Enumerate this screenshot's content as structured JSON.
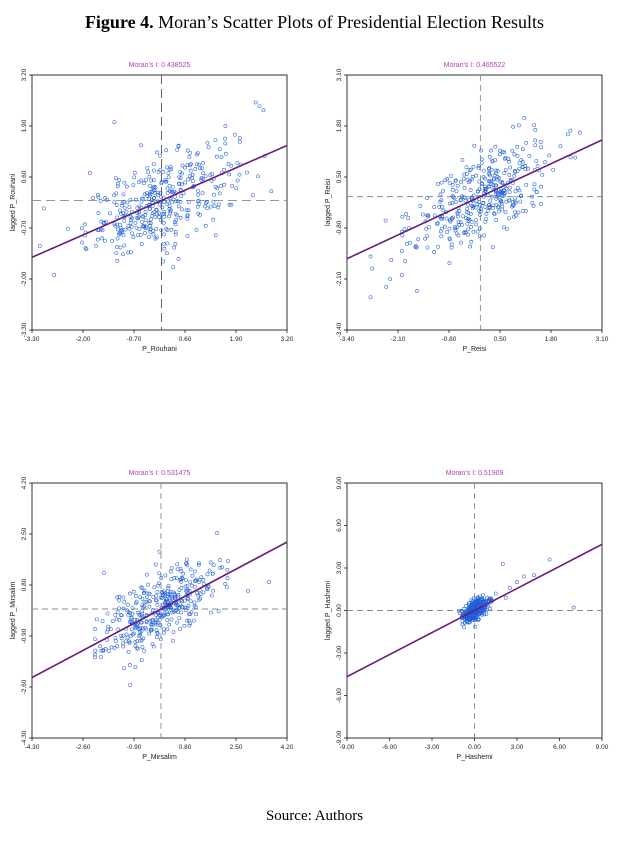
{
  "figure": {
    "label": "Figure 4.",
    "title": "Moran’s Scatter Plots of Presidential Election Results",
    "source": "Source: Authors"
  },
  "colors": {
    "point": "#1f5fd6",
    "fit_line": "#6a1a7a",
    "title_text": "#b43cb4",
    "axis": "#000000",
    "ref_line": "#8a8a8a"
  },
  "chart_data": [
    {
      "type": "scatter",
      "title": "Moran's I: 0.438525",
      "xlabel": "P_Rouhani",
      "ylabel": "lagged P_Rouhani",
      "xlim": [
        -3.3,
        3.2
      ],
      "ylim": [
        -3.3,
        3.2
      ],
      "xticks": [
        "-3.30",
        "-2.00",
        "-0.70",
        "0.60",
        "1.90",
        "3.20"
      ],
      "yticks": [
        "-3.30",
        "-2.00",
        "-0.70",
        "0.60",
        "1.90",
        "3.20"
      ],
      "xtick_values": [
        -3.3,
        -2.0,
        -0.7,
        0.6,
        1.9,
        3.2
      ],
      "ytick_values": [
        -3.3,
        -2.0,
        -0.7,
        0.6,
        1.9,
        3.2
      ],
      "moran_i": 0.438525,
      "ref_x": 0,
      "ref_y": 0,
      "ref_style": "long-dash",
      "point_sd_x": 0.95,
      "point_sd_y": 0.55,
      "point_count": 380,
      "x_range": [
        -3.1,
        2.8
      ],
      "outliers": [
        [
          -1.2,
          2.0
        ],
        [
          2.4,
          2.5
        ],
        [
          2.5,
          2.4
        ],
        [
          2.6,
          2.3
        ],
        [
          2.0,
          1.5
        ],
        [
          -3.0,
          -0.2
        ],
        [
          0.3,
          -1.7
        ]
      ]
    },
    {
      "type": "scatter",
      "title": "Moran's I: 0.465522",
      "xlabel": "P_Reisi",
      "ylabel": "lagged P_Reisi",
      "xlim": [
        -3.4,
        3.1
      ],
      "ylim": [
        -3.4,
        3.1
      ],
      "xticks": [
        "-3.40",
        "-2.10",
        "-0.80",
        "0.50",
        "1.80",
        "3.10"
      ],
      "yticks": [
        "-3.40",
        "-2.10",
        "-0.80",
        "0.50",
        "1.80",
        "3.10"
      ],
      "xtick_values": [
        -3.4,
        -2.1,
        -0.8,
        0.5,
        1.8,
        3.1
      ],
      "ytick_values": [
        -3.4,
        -2.1,
        -0.8,
        0.5,
        1.8,
        3.1
      ],
      "moran_i": 0.465522,
      "ref_x": 0,
      "ref_y": 0,
      "ref_style": "dash",
      "point_sd_x": 0.9,
      "point_sd_y": 0.55,
      "point_count": 380,
      "x_range": [
        -2.8,
        2.6
      ],
      "outliers": [
        [
          -2.4,
          -2.3
        ],
        [
          -2.3,
          -2.1
        ],
        [
          1.4,
          1.7
        ],
        [
          -2.0,
          -2.0
        ],
        [
          2.3,
          1.0
        ]
      ]
    },
    {
      "type": "scatter",
      "title": "Moran's I: 0.531475",
      "xlabel": "P_Mirsalim",
      "ylabel": "lagged P_Mirsalim",
      "xlim": [
        -4.3,
        4.2
      ],
      "ylim": [
        -4.3,
        4.2
      ],
      "xticks": [
        "-4.30",
        "-2.60",
        "-0.90",
        "0.80",
        "2.50",
        "4.20"
      ],
      "yticks": [
        "-4.30",
        "-2.60",
        "-0.90",
        "0.80",
        "2.50",
        "4.20"
      ],
      "xtick_values": [
        -4.3,
        -2.6,
        -0.9,
        0.8,
        2.5,
        4.2
      ],
      "ytick_values": [
        -4.3,
        -2.6,
        -0.9,
        0.8,
        2.5,
        4.2
      ],
      "moran_i": 0.531475,
      "ref_x": 0,
      "ref_y": 0,
      "ref_style": "dash",
      "point_sd_x": 1.0,
      "point_sd_y": 0.6,
      "point_count": 380,
      "x_range": [
        -2.2,
        3.2
      ],
      "outliers": [
        [
          -1.9,
          1.2
        ],
        [
          3.6,
          0.9
        ],
        [
          2.9,
          0.6
        ],
        [
          -2.0,
          -1.6
        ]
      ]
    },
    {
      "type": "scatter",
      "title": "Moran's I: 0.51909",
      "xlabel": "P_Hashemi",
      "ylabel": "lagged P_Hashemi",
      "xlim": [
        -9.0,
        9.0
      ],
      "ylim": [
        -9.0,
        9.0
      ],
      "xticks": [
        "-9.00",
        "-6.00",
        "-3.00",
        "0.00",
        "3.00",
        "6.00",
        "9.00"
      ],
      "yticks": [
        "-9.00",
        "-6.00",
        "-3.00",
        "0.00",
        "3.00",
        "6.00",
        "9.00"
      ],
      "xtick_values": [
        -9.0,
        -6.0,
        -3.0,
        0.0,
        3.0,
        6.0,
        9.0
      ],
      "ytick_values": [
        -9.0,
        -6.0,
        -3.0,
        0.0,
        3.0,
        6.0,
        9.0
      ],
      "moran_i": 0.51909,
      "ref_x": 0,
      "ref_y": 0,
      "ref_style": "dash",
      "point_sd_x": 0.45,
      "point_sd_y": 0.35,
      "point_count": 360,
      "x_range": [
        -1.2,
        2.0
      ],
      "outliers": [
        [
          5.3,
          3.6
        ],
        [
          4.2,
          2.5
        ],
        [
          3.5,
          2.4
        ],
        [
          2.0,
          3.3
        ],
        [
          7.0,
          0.2
        ],
        [
          2.5,
          1.6
        ],
        [
          3.0,
          2.0
        ],
        [
          1.5,
          1.2
        ],
        [
          2.2,
          0.9
        ]
      ]
    }
  ]
}
